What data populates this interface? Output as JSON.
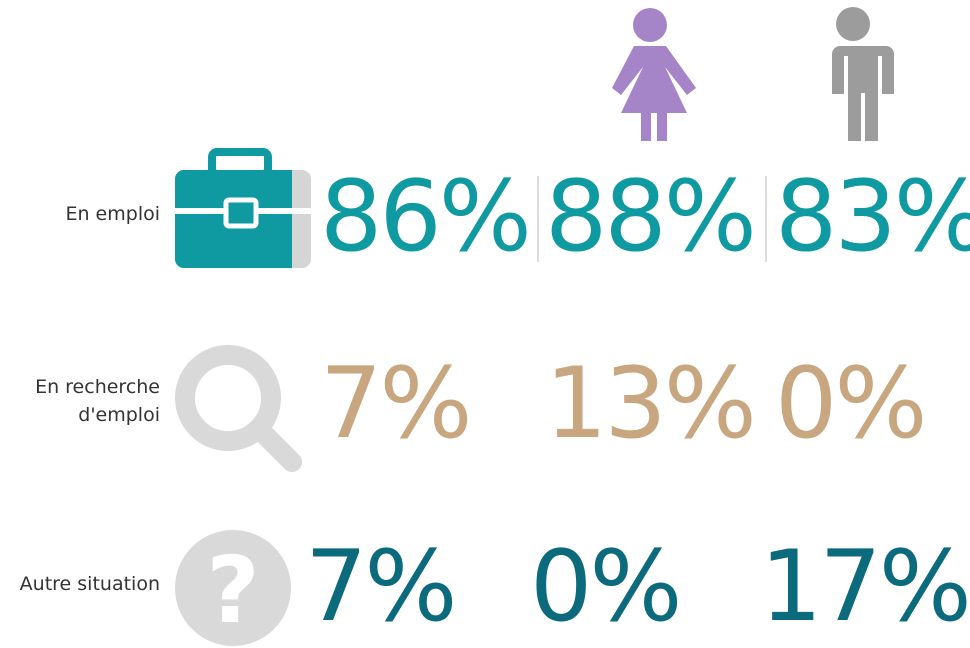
{
  "rows": [
    {
      "label": [
        "En emploi"
      ],
      "total": "86%",
      "women": "88%",
      "men": "83%",
      "color": "#0e9aa0"
    },
    {
      "label": [
        "En recherche",
        "d'emploi"
      ],
      "total": "7%",
      "women": "13%",
      "men": "0%",
      "color": "#c8a67f"
    },
    {
      "label": [
        "Autre situation"
      ],
      "total": "7%",
      "women": "0%",
      "men": "17%",
      "color": "#0b6a7c"
    }
  ]
}
